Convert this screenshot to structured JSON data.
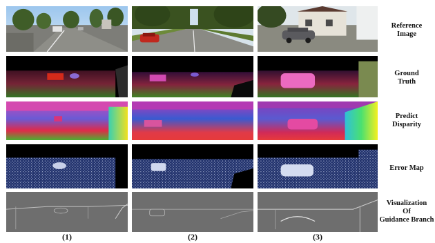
{
  "row_labels": {
    "reference": [
      "Reference",
      "Image"
    ],
    "ground_truth": [
      "Ground",
      "Truth"
    ],
    "predict": [
      "Predict",
      "Disparity"
    ],
    "error": [
      "Error Map"
    ],
    "visualization": [
      "Visualization",
      "Of",
      "Guidance Branch"
    ]
  },
  "column_labels": [
    "(1)",
    "(2)",
    "(3)"
  ]
}
